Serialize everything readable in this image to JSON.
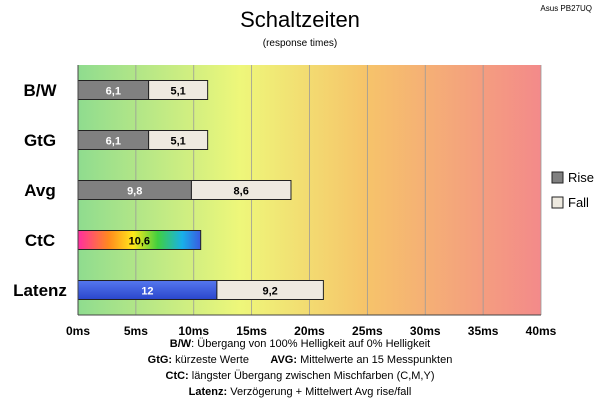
{
  "chart_data": {
    "type": "bar",
    "title": "Schaltzeiten",
    "subtitle": "(response times)",
    "model": "Asus PB27UQ",
    "categories": [
      "B/W",
      "GtG",
      "Avg",
      "CtC",
      "Latenz"
    ],
    "series": [
      {
        "name": "Rise",
        "color": "#808080",
        "values": [
          6.1,
          6.1,
          9.8,
          null,
          null
        ],
        "labels": [
          "6,1",
          "6,1",
          "9,8",
          "",
          ""
        ]
      },
      {
        "name": "Fall",
        "color": "#eeeae0",
        "values": [
          5.1,
          5.1,
          8.6,
          null,
          9.2
        ],
        "labels": [
          "5,1",
          "5,1",
          "8,6",
          "",
          "9,2"
        ]
      }
    ],
    "extra_bars": [
      {
        "category": "CtC",
        "value": 10.6,
        "label": "10,6",
        "style": "rainbow"
      },
      {
        "category": "Latenz",
        "value": 12,
        "label": "12",
        "style": "blue",
        "color": "#3355dd"
      }
    ],
    "xlim": [
      0,
      40
    ],
    "xticks": [
      0,
      5,
      10,
      15,
      20,
      25,
      30,
      35,
      40
    ],
    "xtick_labels": [
      "0ms",
      "5ms",
      "10ms",
      "15ms",
      "20ms",
      "25ms",
      "30ms",
      "35ms",
      "40ms"
    ],
    "background_gradient": [
      "#8fdc8f",
      "#eef77a",
      "#f6c46a",
      "#f38a8a"
    ],
    "grid": true,
    "legend_position": "right"
  },
  "footer": {
    "line1_key": "B/W",
    "line1_text": ":  Übergang von 100% Helligkeit auf 0% Helligkeit",
    "line2a_key": "GtG:",
    "line2a_text": " kürzeste  Werte",
    "line2b_key": "AVG:",
    "line2b_text": " Mittelwerte  an 15 Messpunkten",
    "line3_key": "CtC:",
    "line3_text": " längster Übergang  zwischen Mischfarben (C,M,Y)",
    "line4_key": "Latenz:",
    "line4_text": " Verzögerung  + Mittelwert  Avg rise/fall"
  }
}
